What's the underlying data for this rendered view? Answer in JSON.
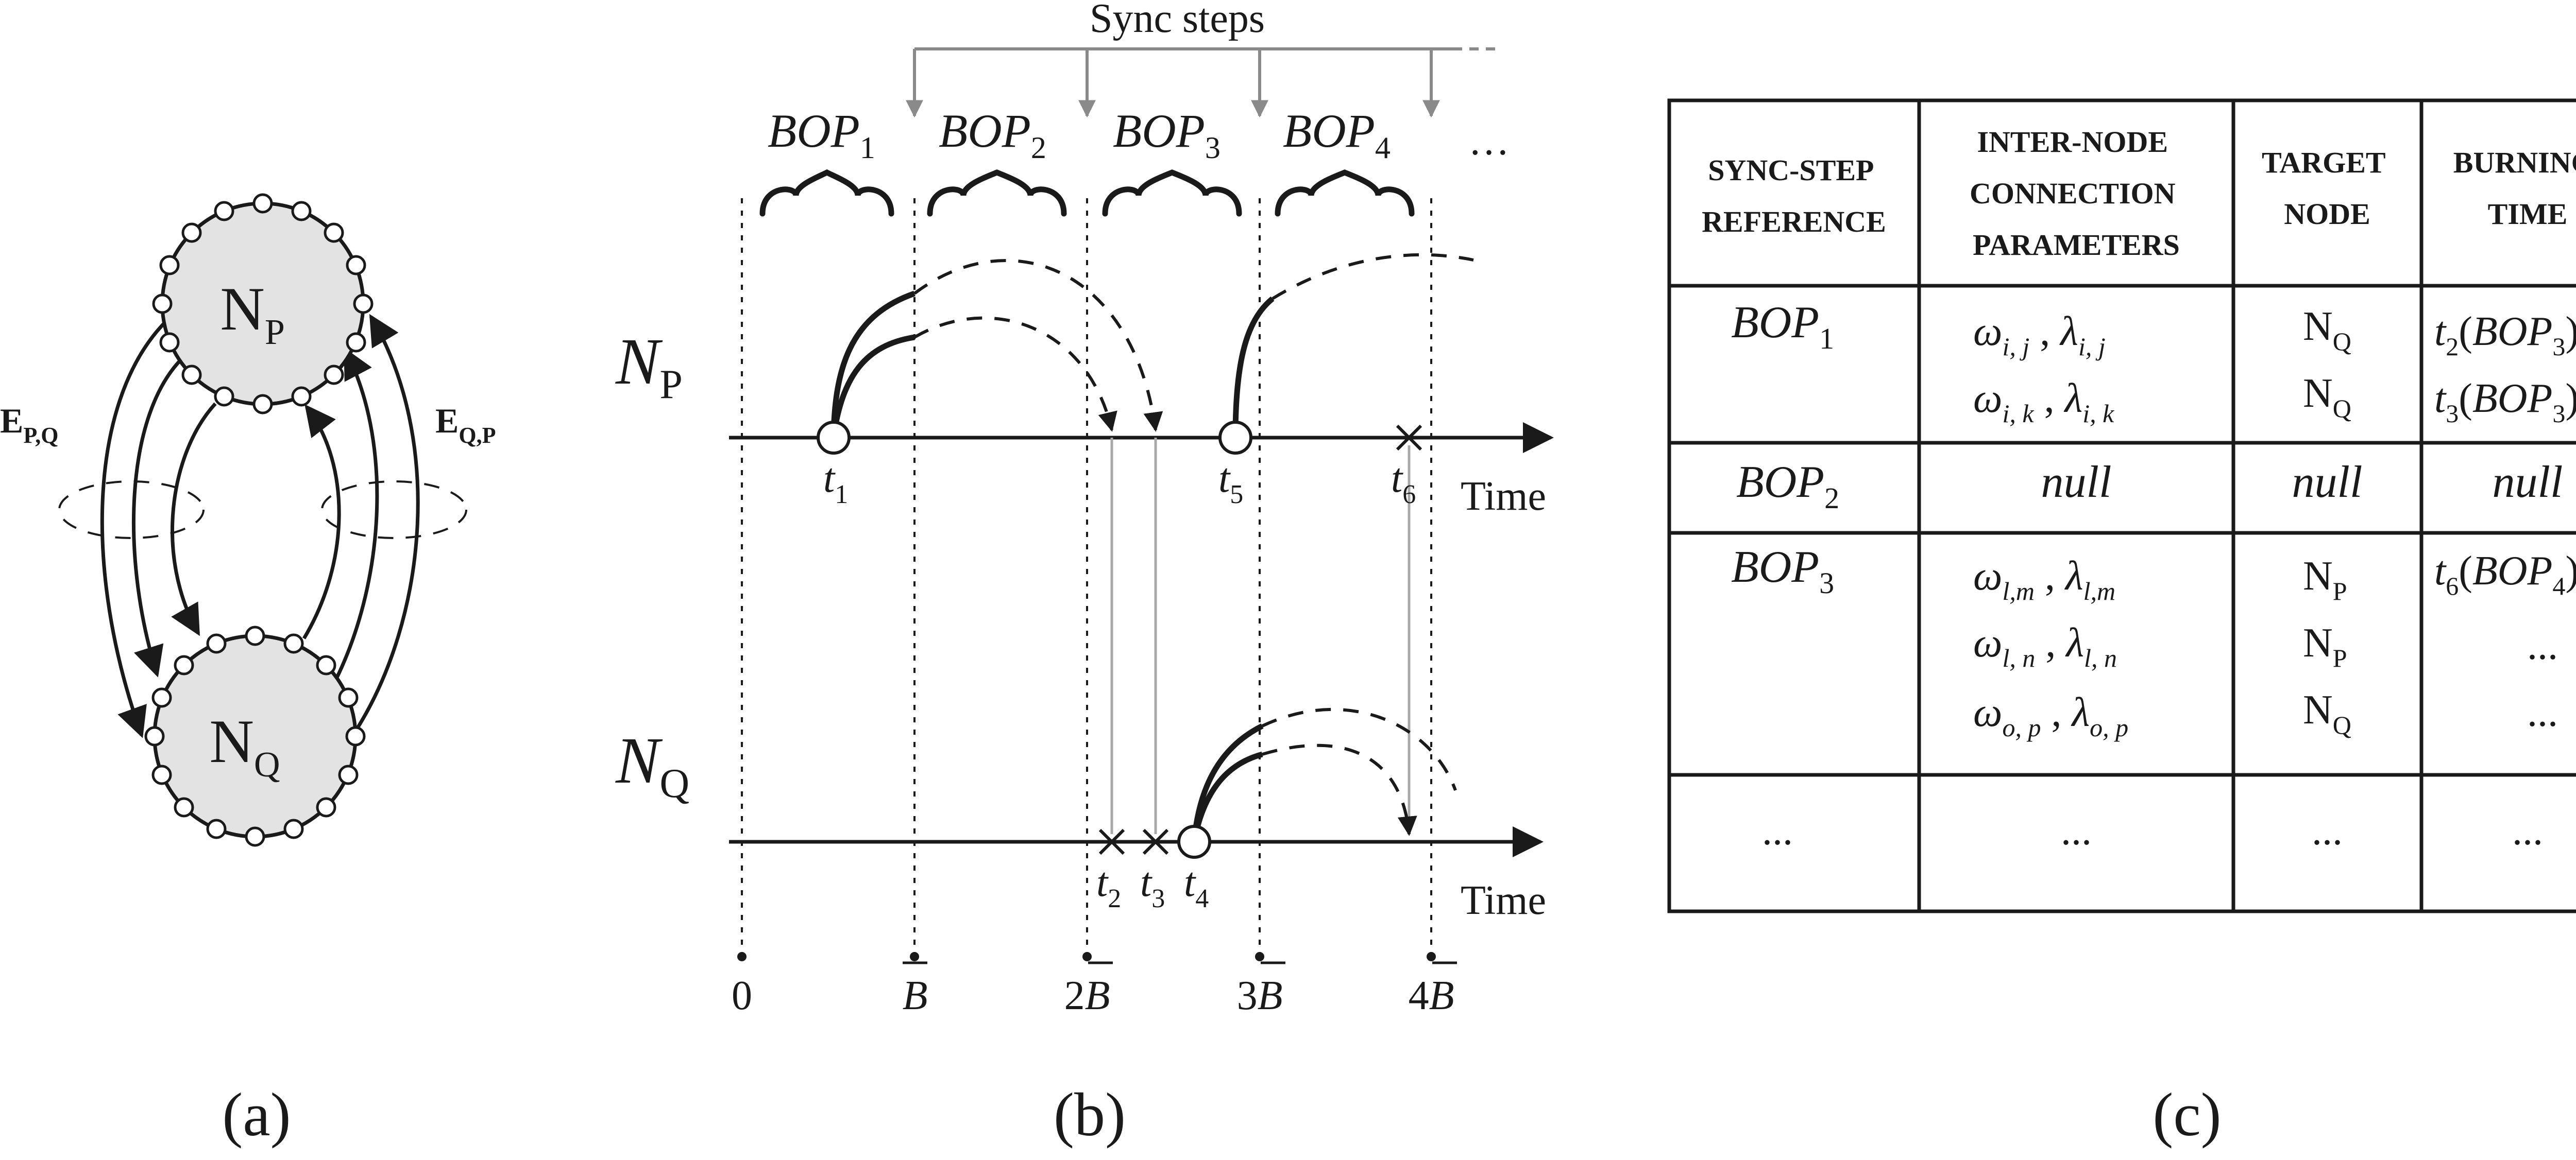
{
  "panel_a": {
    "caption": "(a)",
    "node_p": {
      "label": "N",
      "sub": "P"
    },
    "node_q": {
      "label": "N",
      "sub": "Q"
    },
    "edge_pq": {
      "label": "E",
      "sub": "P,Q"
    },
    "edge_qp": {
      "label": "E",
      "sub": "Q,P"
    }
  },
  "panel_b": {
    "caption": "(b)",
    "sync_label": "Sync steps",
    "bops": [
      {
        "main": "BOP",
        "sub": "1"
      },
      {
        "main": "BOP",
        "sub": "2"
      },
      {
        "main": "BOP",
        "sub": "3"
      },
      {
        "main": "BOP",
        "sub": "4"
      }
    ],
    "ellipsis": "…",
    "np": {
      "main": "N",
      "sub": "P"
    },
    "nq": {
      "main": "N",
      "sub": "Q"
    },
    "time_label": "Time",
    "np_times": [
      {
        "t": "t",
        "sub": "1"
      },
      {
        "t": "t",
        "sub": "5"
      },
      {
        "t": "t",
        "sub": "6"
      }
    ],
    "nq_times": [
      {
        "t": "t",
        "sub": "2"
      },
      {
        "t": "t",
        "sub": "3"
      },
      {
        "t": "t",
        "sub": "4"
      }
    ],
    "axis_ticks": [
      {
        "pre": "0",
        "bar": ""
      },
      {
        "pre": "",
        "bar": "B"
      },
      {
        "pre": "2",
        "bar": "B"
      },
      {
        "pre": "3",
        "bar": "B"
      },
      {
        "pre": "4",
        "bar": "B"
      }
    ]
  },
  "panel_c": {
    "caption": "(c)",
    "headers": [
      [
        "SYNC-STEP",
        "REFERENCE"
      ],
      [
        "INTER-NODE",
        "CONNECTION",
        "PARAMETERS"
      ],
      [
        "TARGET",
        "NODE"
      ],
      [
        "BURNING",
        "TIME"
      ]
    ],
    "rows": [
      {
        "ref": {
          "main": "BOP",
          "sub": "1"
        },
        "entries": [
          {
            "w_sub": "i, j",
            "l_sub": "i, j",
            "node_sub": "Q",
            "burn": {
              "t_sub": "2",
              "bop_sub": "3"
            }
          },
          {
            "w_sub": "i, k",
            "l_sub": "i, k",
            "node_sub": "Q",
            "burn": {
              "t_sub": "3",
              "bop_sub": "3"
            }
          }
        ]
      },
      {
        "ref": {
          "main": "BOP",
          "sub": "2"
        },
        "null": "null"
      },
      {
        "ref": {
          "main": "BOP",
          "sub": "3"
        },
        "entries": [
          {
            "w_sub": "l,m",
            "l_sub": "l,m",
            "node_sub": "P",
            "burn": {
              "t_sub": "6",
              "bop_sub": "4"
            }
          },
          {
            "w_sub": "l, n",
            "l_sub": "l, n",
            "node_sub": "P",
            "burn_text": "..."
          },
          {
            "w_sub": "o, p",
            "l_sub": "o, p",
            "node_sub": "Q",
            "burn_text": "..."
          }
        ]
      },
      {
        "ellipsis": "..."
      }
    ]
  }
}
